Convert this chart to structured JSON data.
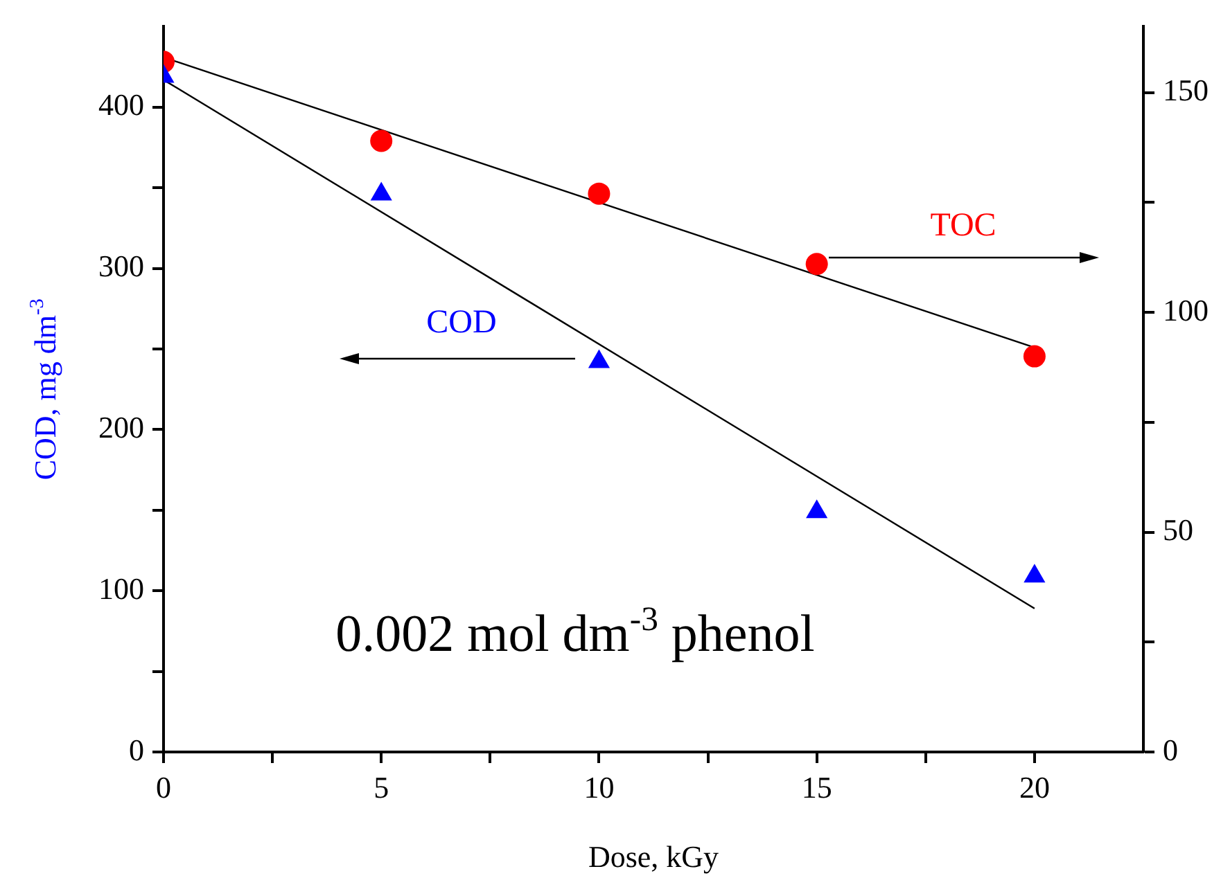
{
  "chart_data": {
    "type": "scatter",
    "xlabel": "Dose, kGy",
    "ylabel": "COD, mg dm$^{-3}$",
    "annotations": [
      "0.002 mol dm$^{-3}$ phenol"
    ],
    "xlim": [
      0,
      22.5
    ],
    "xticks": [
      0,
      {
        "value": 2.5,
        "label": null
      },
      5,
      {
        "value": 7.5,
        "label": null
      },
      10,
      {
        "value": 12.5,
        "label": null
      },
      15,
      {
        "value": 17.5,
        "label": null
      },
      20
    ],
    "ylim": [
      0,
      450
    ],
    "yticks": [
      0,
      {
        "value": 50,
        "label": null
      },
      100,
      {
        "value": 150,
        "label": null
      },
      200,
      {
        "value": 250,
        "label": null
      },
      300,
      {
        "value": 350,
        "label": null
      },
      400
    ],
    "y2lim": [
      0,
      165
    ],
    "y2ticks": [
      0,
      {
        "value": 25,
        "label": null
      },
      50,
      {
        "value": 75,
        "label": null
      },
      100,
      {
        "value": 125,
        "label": null
      },
      150
    ],
    "grid": false,
    "legend": false,
    "series": [
      {
        "name": "COD",
        "marker": "triangle",
        "color": "#0000ff",
        "x": [
          0,
          5,
          10,
          15,
          20
        ],
        "values": [
          419,
          346,
          242,
          149,
          109
        ],
        "axis": "y"
      },
      {
        "name": "TOC",
        "marker": "circle",
        "color": "#ff0000",
        "x": [
          0,
          5,
          10,
          15,
          20
        ],
        "values": [
          157,
          139,
          127,
          111,
          90
        ],
        "axis": "y2"
      },
      {
        "type": "line",
        "marker": "none",
        "color": "#000000",
        "x": [
          0,
          20
        ],
        "values": [
          417,
          89
        ],
        "axis": "y"
      },
      {
        "type": "line",
        "marker": "none",
        "color": "#000000",
        "x": [
          0,
          20
        ],
        "values": [
          158,
          92
        ],
        "axis": "y2"
      }
    ]
  }
}
